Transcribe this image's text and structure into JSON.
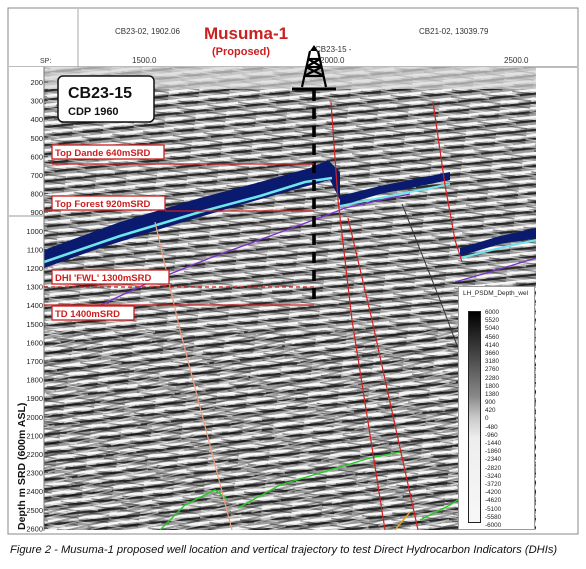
{
  "figure": {
    "well_title": "Musuma-1",
    "well_subtitle": "(Proposed)",
    "sp_label": "SP:",
    "top_labels": [
      "CB23-02, 1902.06",
      "CB23-15 -",
      "CB21-02, 13039.79"
    ],
    "sp_ticks": [
      "1500.0",
      "2000.0",
      "2500.0"
    ],
    "line_box": {
      "title": "CB23-15",
      "subtitle": "CDP 1960"
    },
    "y_axis_label": "Depth m SRD (600m ASL)",
    "depth_ticks": [
      200,
      300,
      400,
      500,
      600,
      700,
      800,
      900,
      1000,
      1100,
      1200,
      1300,
      1400,
      1500,
      1600,
      1700,
      1800,
      1900,
      2000,
      2100,
      2200,
      2300,
      2400,
      2500,
      2600
    ],
    "annotations": [
      {
        "text": "Top Dande  640mSRD",
        "depth": 640,
        "line": "solid"
      },
      {
        "text": "Top Forest  920mSRD",
        "depth": 920,
        "line": "solid"
      },
      {
        "text": "DHI 'FWL'  1300mSRD",
        "depth": 1300,
        "line": "dashed"
      },
      {
        "text": "TD  1400mSRD",
        "depth": 1400,
        "line": "solid"
      }
    ],
    "legend": {
      "title": "LH_PSDM_Depth_wel",
      "values": [
        "6000",
        "5520",
        "5040",
        "4560",
        "4140",
        "3660",
        "3180",
        "2760",
        "2280",
        "1800",
        "1380",
        "900",
        "420",
        "0",
        "-480",
        "-960",
        "-1440",
        "-1860",
        "-2340",
        "-2820",
        "-3240",
        "-3720",
        "-4200",
        "-4620",
        "-5100",
        "-5580",
        "-6000"
      ]
    },
    "colors": {
      "annotation_red": "#cc2020",
      "horizon_navy": "#0a1a6e",
      "horizon_cyan": "#6ee6ee",
      "horizon_purple": "#7a30c8",
      "horizon_green": "#22cc22",
      "horizon_orange": "#e8a020",
      "fault_red": "#d42020",
      "fault_salmon": "#f0a080",
      "fault_black": "#333333"
    }
  },
  "caption": "Figure 2 - Musuma-1 proposed well location and vertical trajectory to test Direct Hydrocarbon Indicators (DHIs)"
}
